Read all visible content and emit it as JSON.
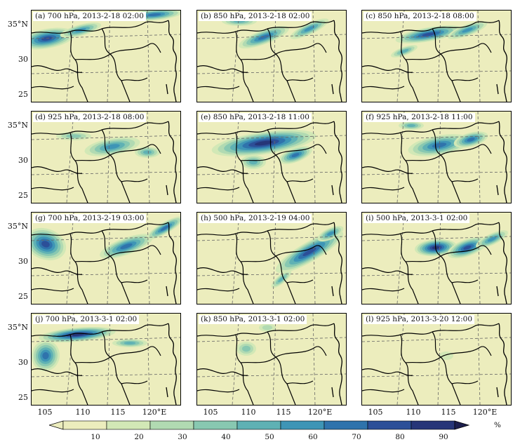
{
  "panels": [
    {
      "label": "(a) 700 hPa, 2013-2-18 02:00"
    },
    {
      "label": "(b) 850 hPa, 2013-2-18 02:00"
    },
    {
      "label": "(c) 850 hPa, 2013-2-18 08:00"
    },
    {
      "label": "(d) 925 hPa, 2013-2-18 08:00"
    },
    {
      "label": "(e) 850 hPa, 2013-2-18 11:00"
    },
    {
      "label": "(f) 925 hPa, 2013-2-18 11:00"
    },
    {
      "label": "(g) 700 hPa, 2013-2-19 03:00"
    },
    {
      "label": "(h) 500 hPa, 2013-2-19 04:00"
    },
    {
      "label": "(i) 500 hPa, 2013-3-1 02:00"
    },
    {
      "label": "(j) 700 hPa, 2013-3-1 02:00"
    },
    {
      "label": "(k) 850 hPa, 2013-3-1 02:00"
    },
    {
      "label": "(l) 925 hPa, 2013-3-20 12:00"
    }
  ],
  "axes": {
    "lat_labels": [
      "35°N",
      "30",
      "25"
    ],
    "lon_labels": [
      "105",
      "110",
      "115",
      "120°E"
    ]
  },
  "colorbar": {
    "ticks": [
      "10",
      "20",
      "30",
      "40",
      "50",
      "60",
      "70",
      "80",
      "90"
    ],
    "unit": "%",
    "colors": [
      "#ecedbd",
      "#d2e8b6",
      "#b1dab2",
      "#88c8b1",
      "#5fb1b4",
      "#3e95b6",
      "#2f73ac",
      "#2c4f98",
      "#263578",
      "#1c1f4d"
    ]
  }
}
